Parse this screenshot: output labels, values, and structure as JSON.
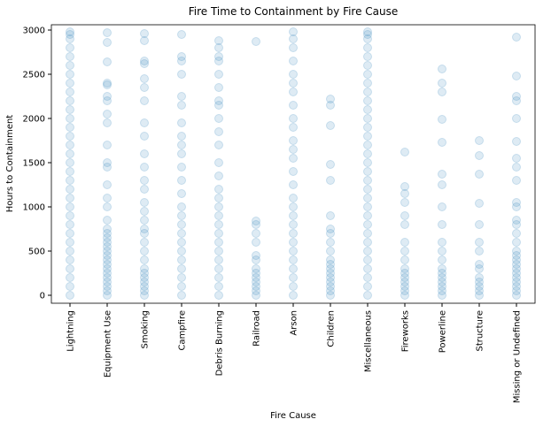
{
  "chart_data": {
    "type": "strip",
    "title": "Fire Time to Containment by Fire Cause",
    "x_label": "Fire Cause",
    "y_label": "Hours to Containment",
    "color": "#1f77b4",
    "categories": [
      "Lightning",
      "Equipment Use",
      "Smoking",
      "Campfire",
      "Debris Burning",
      "Railroad",
      "Arson",
      "Children",
      "Miscellaneous",
      "Fireworks",
      "Powerline",
      "Structure",
      "Missing or Undefined"
    ],
    "values": [
      [
        0,
        100,
        200,
        300,
        400,
        500,
        600,
        700,
        800,
        900,
        1000,
        1100,
        1200,
        1300,
        1400,
        1500,
        1600,
        1700,
        1800,
        1900,
        2000,
        2100,
        2200,
        2300,
        2400,
        2500,
        2600,
        2700,
        2800,
        2900,
        2950,
        2980
      ],
      [
        0,
        50,
        100,
        150,
        200,
        250,
        300,
        350,
        400,
        450,
        500,
        550,
        600,
        650,
        700,
        750,
        850,
        1000,
        1100,
        1250,
        1450,
        1500,
        1700,
        1950,
        2050,
        2200,
        2250,
        2400,
        2380,
        2640,
        2860,
        2970
      ],
      [
        0,
        50,
        100,
        150,
        200,
        250,
        300,
        400,
        500,
        600,
        700,
        750,
        850,
        950,
        1050,
        1200,
        1300,
        1450,
        1600,
        1800,
        1950,
        2200,
        2350,
        2450,
        2620,
        2650,
        2880,
        2960
      ],
      [
        0,
        100,
        200,
        300,
        400,
        500,
        600,
        700,
        800,
        900,
        1000,
        1150,
        1300,
        1450,
        1600,
        1700,
        1800,
        1950,
        2150,
        2250,
        2500,
        2650,
        2700,
        2950
      ],
      [
        0,
        100,
        200,
        300,
        400,
        500,
        600,
        700,
        800,
        900,
        1000,
        1100,
        1200,
        1350,
        1500,
        1700,
        1850,
        2000,
        2150,
        2200,
        2350,
        2500,
        2650,
        2700,
        2800,
        2880
      ],
      [
        0,
        50,
        100,
        150,
        200,
        250,
        300,
        400,
        450,
        600,
        700,
        800,
        840,
        2870
      ],
      [
        0,
        100,
        200,
        300,
        400,
        500,
        600,
        700,
        800,
        900,
        1000,
        1100,
        1250,
        1400,
        1550,
        1650,
        1750,
        1900,
        2000,
        2150,
        2300,
        2400,
        2500,
        2650,
        2800,
        2900,
        2980
      ],
      [
        0,
        50,
        100,
        150,
        200,
        250,
        300,
        350,
        400,
        500,
        600,
        700,
        750,
        900,
        1300,
        1480,
        1920,
        2150,
        2220
      ],
      [
        0,
        100,
        200,
        300,
        400,
        500,
        600,
        700,
        800,
        900,
        1000,
        1100,
        1200,
        1300,
        1400,
        1500,
        1600,
        1700,
        1800,
        1900,
        2000,
        2100,
        2200,
        2300,
        2400,
        2500,
        2600,
        2700,
        2800,
        2900,
        2950,
        2980
      ],
      [
        0,
        50,
        100,
        150,
        200,
        250,
        300,
        400,
        500,
        600,
        800,
        900,
        1050,
        1150,
        1230,
        1620
      ],
      [
        0,
        50,
        100,
        150,
        200,
        250,
        300,
        400,
        500,
        600,
        800,
        1000,
        1250,
        1370,
        1730,
        1990,
        2300,
        2400,
        2560
      ],
      [
        0,
        50,
        100,
        150,
        200,
        300,
        350,
        500,
        600,
        800,
        1040,
        1370,
        1580,
        1750
      ],
      [
        0,
        50,
        100,
        150,
        200,
        250,
        300,
        350,
        400,
        450,
        500,
        600,
        700,
        800,
        850,
        1000,
        1050,
        1300,
        1450,
        1550,
        1740,
        2000,
        2200,
        2250,
        2480,
        2920
      ]
    ],
    "ylim": [
      -90,
      3060
    ],
    "yticks": [
      0,
      500,
      1000,
      1500,
      2000,
      2500,
      3000
    ]
  }
}
